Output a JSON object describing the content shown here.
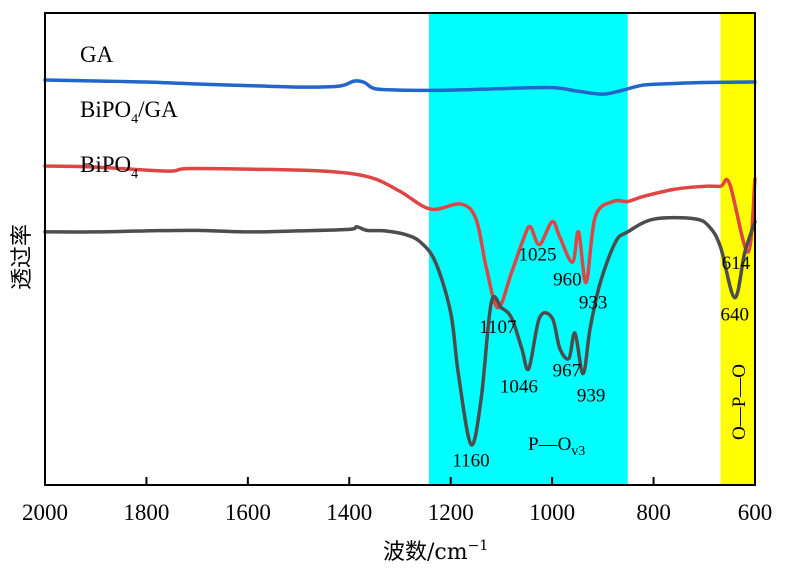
{
  "chart_data": {
    "type": "line",
    "title": "",
    "xlabel": "波数/cm⁻¹",
    "xlabel_main": "波数/cm",
    "xlabel_sup": "−1",
    "ylabel": "透过率",
    "xlim": [
      2000,
      600
    ],
    "x_reversed": true,
    "y_ticks_shown": false,
    "grid": false,
    "x_ticks": [
      2000,
      1800,
      1600,
      1400,
      1200,
      1000,
      800,
      600
    ],
    "x_tick_labels": [
      "2000",
      "1800",
      "1600",
      "1400",
      "1200",
      "1000",
      "800",
      "600"
    ],
    "bands": [
      {
        "name": "P—O v3",
        "from": 1243,
        "to": 851,
        "color": "#00FFFF",
        "label_main": "P—O",
        "label_sub": "v3"
      },
      {
        "name": "O—P—O",
        "from": 668,
        "to": 600,
        "color": "#FFFF00",
        "label_main": "O—P—O"
      }
    ],
    "series": [
      {
        "name": "GA",
        "label": "GA",
        "color": "#2266CC",
        "note": "y = relative transmittance (arbitrary units, higher = more transmittance, offset stacked)",
        "points": [
          [
            2000,
            90
          ],
          [
            1900,
            89.8
          ],
          [
            1800,
            89.6
          ],
          [
            1700,
            89.2
          ],
          [
            1600,
            88.9
          ],
          [
            1500,
            88.6
          ],
          [
            1420,
            88.8
          ],
          [
            1390,
            89.8
          ],
          [
            1370,
            89.5
          ],
          [
            1350,
            88.3
          ],
          [
            1300,
            88
          ],
          [
            1200,
            88
          ],
          [
            1100,
            88.3
          ],
          [
            1000,
            88.5
          ],
          [
            950,
            87.8
          ],
          [
            900,
            87.2
          ],
          [
            860,
            88
          ],
          [
            820,
            89
          ],
          [
            760,
            89.3
          ],
          [
            700,
            89.5
          ],
          [
            600,
            89.6
          ]
        ]
      },
      {
        "name": "BiPO4/GA",
        "label_main": "BiPO",
        "label_sub": "4",
        "label_rest": "/GA",
        "color": "#E04545",
        "points": [
          [
            2000,
            73
          ],
          [
            1900,
            72.8
          ],
          [
            1760,
            72
          ],
          [
            1720,
            72.5
          ],
          [
            1600,
            72.4
          ],
          [
            1450,
            72
          ],
          [
            1360,
            70.8
          ],
          [
            1300,
            68
          ],
          [
            1240,
            64.5
          ],
          [
            1180,
            65.5
          ],
          [
            1150,
            62.5
          ],
          [
            1130,
            53
          ],
          [
            1107,
            45
          ],
          [
            1080,
            52
          ],
          [
            1055,
            59
          ],
          [
            1043,
            61
          ],
          [
            1025,
            57.5
          ],
          [
            1000,
            62
          ],
          [
            985,
            59
          ],
          [
            960,
            54
          ],
          [
            948,
            60
          ],
          [
            933,
            50
          ],
          [
            915,
            63
          ],
          [
            880,
            66
          ],
          [
            851,
            66
          ],
          [
            820,
            67
          ],
          [
            760,
            68.4
          ],
          [
            700,
            69
          ],
          [
            668,
            69
          ],
          [
            650,
            69.5
          ],
          [
            614,
            56
          ],
          [
            600,
            70.5
          ]
        ]
      },
      {
        "name": "BiPO4",
        "label_main": "BiPO",
        "label_sub": "4",
        "color": "#4D4D4D",
        "points": [
          [
            2000,
            60
          ],
          [
            1900,
            60
          ],
          [
            1800,
            60.2
          ],
          [
            1700,
            60.3
          ],
          [
            1600,
            60
          ],
          [
            1500,
            60.2
          ],
          [
            1400,
            60.5
          ],
          [
            1385,
            61
          ],
          [
            1365,
            60.3
          ],
          [
            1330,
            60.2
          ],
          [
            1290,
            59.5
          ],
          [
            1260,
            58
          ],
          [
            1230,
            54
          ],
          [
            1200,
            44
          ],
          [
            1185,
            32
          ],
          [
            1160,
            18
          ],
          [
            1140,
            27
          ],
          [
            1120,
            46
          ],
          [
            1100,
            45
          ],
          [
            1080,
            43
          ],
          [
            1060,
            37
          ],
          [
            1046,
            33
          ],
          [
            1025,
            43
          ],
          [
            1000,
            43
          ],
          [
            985,
            37
          ],
          [
            967,
            35
          ],
          [
            955,
            40
          ],
          [
            939,
            32
          ],
          [
            925,
            41
          ],
          [
            905,
            50
          ],
          [
            875,
            58
          ],
          [
            851,
            60
          ],
          [
            800,
            62.5
          ],
          [
            720,
            62.6
          ],
          [
            690,
            61
          ],
          [
            668,
            57
          ],
          [
            640,
            47
          ],
          [
            620,
            56
          ],
          [
            600,
            62
          ]
        ]
      }
    ],
    "annotations": [
      {
        "series": "BiPO4/GA",
        "x": 1107,
        "text": "1107"
      },
      {
        "series": "BiPO4/GA",
        "x": 1025,
        "text": "1025"
      },
      {
        "series": "BiPO4/GA",
        "x": 960,
        "text": "960"
      },
      {
        "series": "BiPO4/GA",
        "x": 933,
        "text": "933"
      },
      {
        "series": "BiPO4/GA",
        "x": 614,
        "text": "614"
      },
      {
        "series": "BiPO4",
        "x": 1160,
        "text": "1160"
      },
      {
        "series": "BiPO4",
        "x": 1046,
        "text": "1046"
      },
      {
        "series": "BiPO4",
        "x": 967,
        "text": "967"
      },
      {
        "series": "BiPO4",
        "x": 939,
        "text": "939"
      },
      {
        "series": "BiPO4",
        "x": 640,
        "text": "640"
      }
    ],
    "legend_placement": "inline-left"
  }
}
